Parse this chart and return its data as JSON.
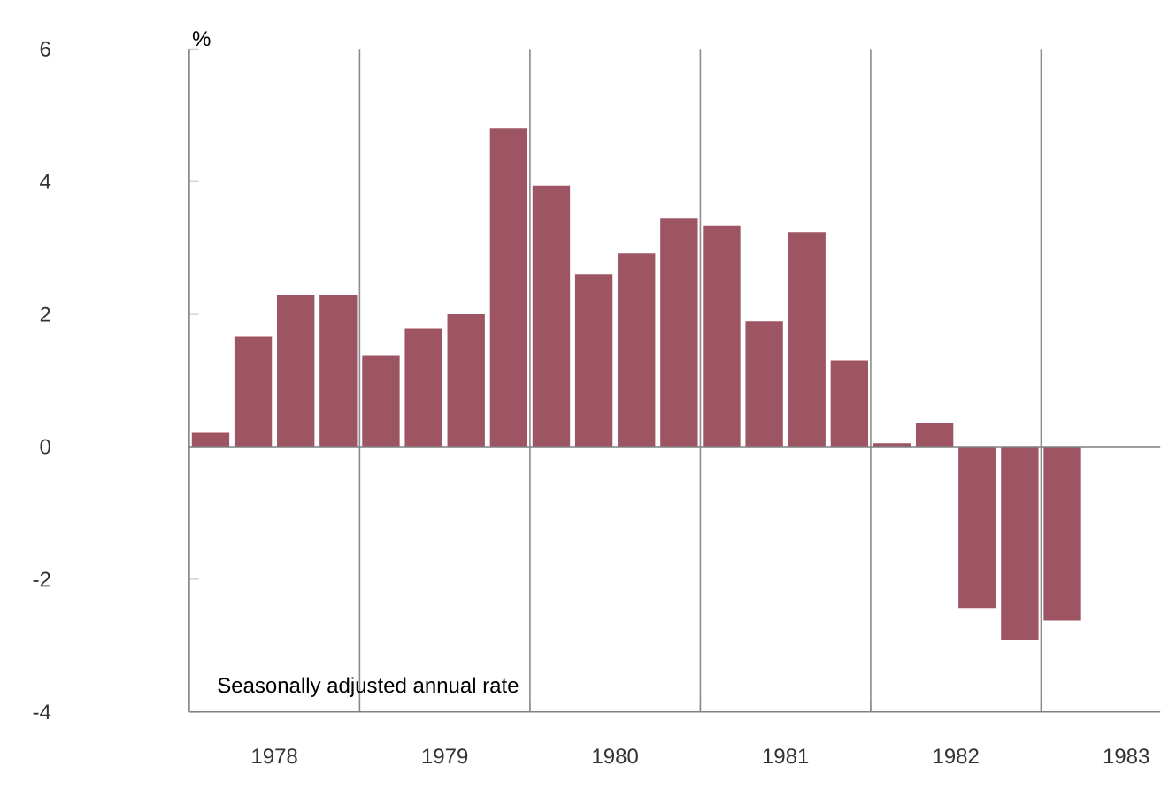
{
  "chart_data": {
    "type": "bar",
    "ylabel": "%",
    "annotations": [
      "Seasonally adjusted annual rate"
    ],
    "x": [
      1978.125,
      1978.375,
      1978.625,
      1978.875,
      1979.125,
      1979.375,
      1979.625,
      1979.875,
      1980.125,
      1980.375,
      1980.625,
      1980.875,
      1981.125,
      1981.375,
      1981.625,
      1981.875,
      1982.125,
      1982.375,
      1982.625,
      1982.875,
      1983.125
    ],
    "values": [
      0.22,
      1.66,
      2.28,
      2.28,
      1.38,
      1.78,
      2.0,
      4.8,
      3.94,
      2.6,
      2.92,
      3.44,
      3.34,
      1.89,
      3.24,
      1.3,
      0.05,
      0.36,
      -2.43,
      -2.92,
      -2.62
    ],
    "color": "#9e5563",
    "xlim": [
      1978,
      1983.7
    ],
    "xticks": [
      {
        "value": 1979,
        "label": null
      },
      {
        "value": 1980,
        "label": null
      },
      {
        "value": 1981,
        "label": null
      },
      {
        "value": 1982,
        "label": null
      },
      {
        "value": 1983,
        "label": null
      },
      {
        "value": 1978.5,
        "label": "1978"
      },
      {
        "value": 1979.5,
        "label": "1979"
      },
      {
        "value": 1980.5,
        "label": "1980"
      },
      {
        "value": 1981.5,
        "label": "1981"
      },
      {
        "value": 1982.5,
        "label": "1982"
      },
      {
        "value": 1983.5,
        "label": "1983"
      }
    ],
    "ylim": [
      -4,
      6
    ],
    "yticks": [
      -4,
      -2,
      0,
      2,
      4,
      6
    ],
    "grid": "x",
    "ref_lines": [
      {
        "axis": "y",
        "value": 0
      }
    ]
  }
}
